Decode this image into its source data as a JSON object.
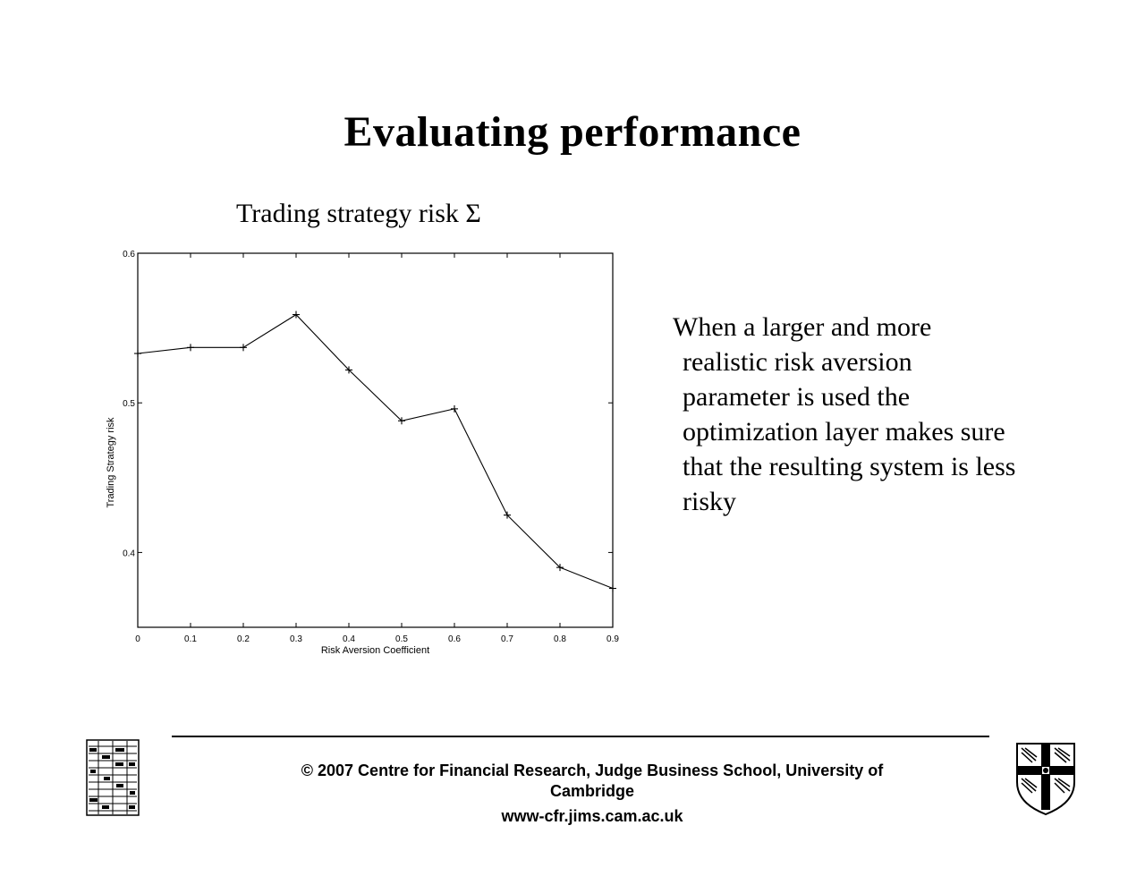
{
  "slide": {
    "title": "Evaluating performance",
    "chart_heading": "Trading strategy risk Σ",
    "body_lines": [
      "When a larger and more",
      "realistic risk aversion",
      "parameter is used the",
      "optimization layer makes sure",
      "that the resulting system is less",
      "risky"
    ]
  },
  "footer": {
    "copyright": "© 2007 Centre for Financial Research,  Judge Business School,  University of Cambridge",
    "url": "www-cfr.jims.cam.ac.uk"
  },
  "logos": {
    "left": "institute-logo-icon",
    "right": "university-crest-icon"
  },
  "chart_data": {
    "type": "line",
    "title": "",
    "xlabel": "Risk Aversion Coefficient",
    "ylabel": "Trading Strategy risk",
    "xlim": [
      0,
      0.9
    ],
    "ylim": [
      0.35,
      0.6
    ],
    "xticks": [
      "0",
      "0.1",
      "0.2",
      "0.3",
      "0.4",
      "0.5",
      "0.6",
      "0.7",
      "0.8",
      "0.9"
    ],
    "yticks": [
      "0.4",
      "0.5",
      "0.6"
    ],
    "grid": false,
    "marker": "+",
    "line_color": "#000000",
    "x": [
      0,
      0.1,
      0.2,
      0.3,
      0.4,
      0.5,
      0.6,
      0.7,
      0.8,
      0.9
    ],
    "series": [
      {
        "values": [
          0.533,
          0.537,
          0.537,
          0.559,
          0.522,
          0.488,
          0.496,
          0.425,
          0.39,
          0.376
        ]
      }
    ]
  }
}
